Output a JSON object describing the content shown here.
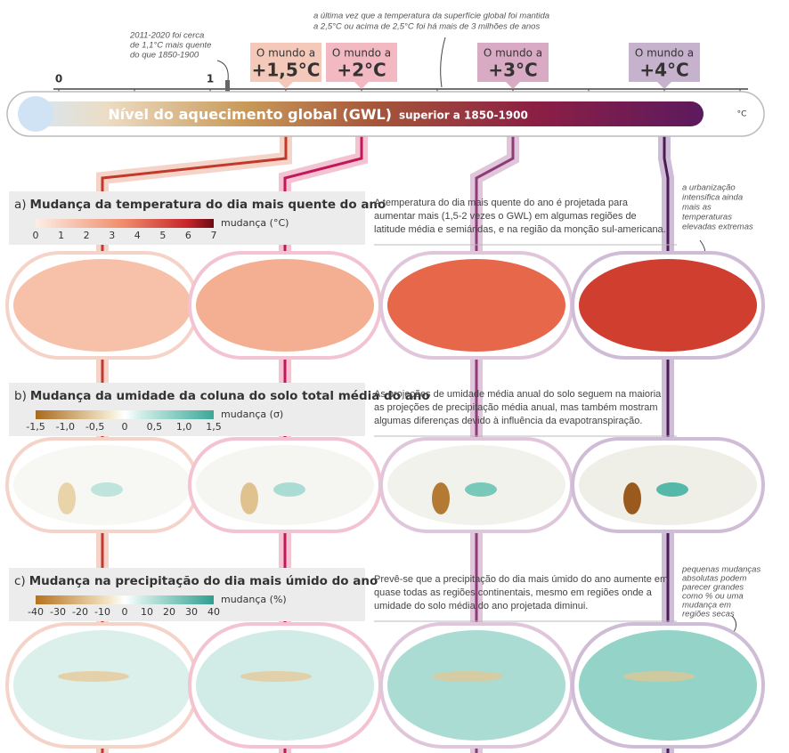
{
  "scale": {
    "ticks": [
      "0",
      "1"
    ],
    "title": "Nível do aquecimento global (GWL)",
    "subtitle": "superior a 1850-1900",
    "unit": "°C"
  },
  "annotations": {
    "recent": [
      "2011-2020 foi cerca",
      "de 1,1°C mais quente",
      "do que 1850-1900"
    ],
    "past": [
      "a última vez que a temperatura da superfície global foi mantida",
      "a 2,5°C ou acima de 2,5°C foi há mais de 3 milhões de anos"
    ],
    "urban": [
      "a urbanização",
      "intensifica ainda",
      "mais as",
      "temperaturas",
      "elevadas extremas"
    ],
    "small": [
      "pequenas mudanças",
      "absolutas podem",
      "parecer grandes",
      "como % ou uma",
      "mudança em",
      "regiões secas"
    ]
  },
  "worlds": [
    {
      "prefix": "O mundo a",
      "level": "+1,5°C"
    },
    {
      "prefix": "O mundo a",
      "level": "+2°C"
    },
    {
      "prefix": "O mundo a",
      "level": "+3°C"
    },
    {
      "prefix": "O mundo a",
      "level": "+4°C"
    }
  ],
  "panels": [
    {
      "letter": "a)",
      "title": "Mudança da temperatura do dia mais quente do ano",
      "legend_ticks": [
        "0",
        "1",
        "2",
        "3",
        "4",
        "5",
        "6",
        "7"
      ],
      "legend_unit": "mudança (°C)",
      "description": [
        "A temperatura do dia mais quente do ano é projetada para",
        "aumentar mais (1,5-2 vezes o GWL) em algumas regiões de",
        "latitude média e semiáridas, e na região da monção sul-americana."
      ]
    },
    {
      "letter": "b)",
      "title": "Mudança da umidade da coluna do solo total média do ano",
      "legend_ticks": [
        "-1,5",
        "-1,0",
        "-0,5",
        "0",
        "0,5",
        "1,0",
        "1,5"
      ],
      "legend_unit": "mudança (σ)",
      "description": [
        "As projeções de umidade média anual do solo seguem na maioria",
        "as projeções de precipitação média anual, mas também mostram",
        "algumas diferenças devido à influência da evapotranspiração."
      ]
    },
    {
      "letter": "c)",
      "title": "Mudança na precipitação do dia mais úmido do ano",
      "legend_ticks": [
        "-40",
        "-30",
        "-20",
        "-10",
        "0",
        "10",
        "20",
        "30",
        "40"
      ],
      "legend_unit": "mudança (%)",
      "description": [
        "Prevê-se que a precipitação do dia mais úmido do ano aumente em",
        "quase todas as regiões continentais, mesmo em regiões onde a",
        "umidade do solo média do ano projetada diminui."
      ]
    }
  ]
}
